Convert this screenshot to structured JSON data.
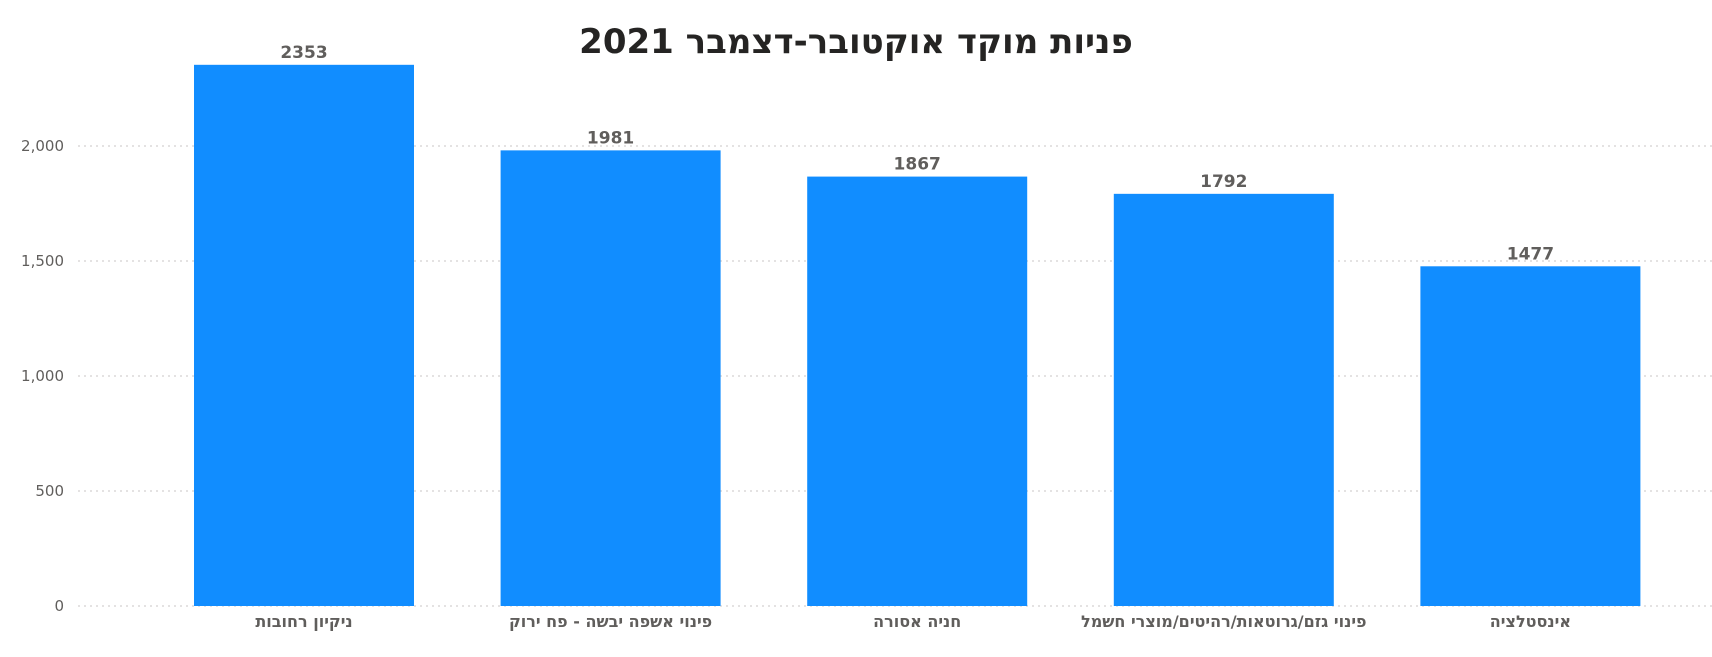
{
  "chart_data": {
    "type": "bar",
    "title": "פניות מוקד אוקטובר-דצמבר 2021",
    "categories": [
      "ניקיון רחובות",
      "פינוי אשפה יבשה - פח ירוק",
      "חניה אסורה",
      "פינוי גזם/גרוטאות/רהיטים/מוצרי חשמל",
      "אינסטלציה"
    ],
    "values": [
      2353,
      1981,
      1867,
      1792,
      1477
    ],
    "data_labels": [
      "2353",
      "1981",
      "1867",
      "1792",
      "1477"
    ],
    "xlabel": "",
    "ylabel": "",
    "ylim": [
      0,
      2400
    ],
    "yticks": [
      0,
      500,
      1000,
      1500,
      2000
    ],
    "ytick_labels": [
      "0",
      "500",
      "1,000",
      "1,500",
      "2,000"
    ],
    "grid": true,
    "legend": "none",
    "colors": {
      "bar": "#118dff",
      "title": "#252423",
      "text": "#605e5c",
      "grid": "#c8c6c4"
    }
  }
}
